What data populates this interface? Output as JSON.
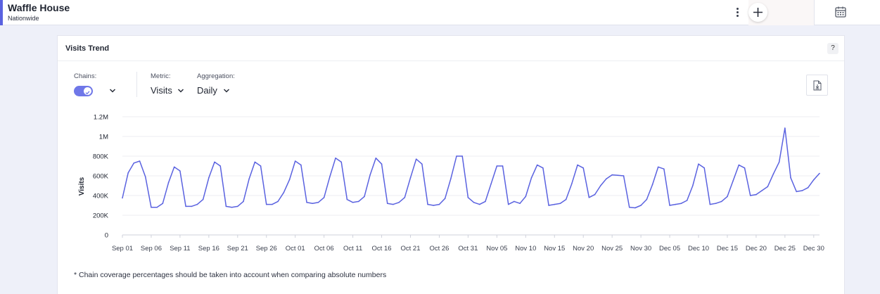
{
  "header": {
    "title": "Waffle House",
    "subtitle": "Nationwide",
    "more_icon": "kebab-vertical-icon",
    "add_icon": "plus-icon",
    "calendar_icon": "calendar-icon"
  },
  "card": {
    "title": "Visits Trend",
    "help_label": "?",
    "controls": {
      "chains_label": "Chains:",
      "metric_label": "Metric:",
      "metric_value": "Visits",
      "aggregation_label": "Aggregation:",
      "aggregation_value": "Daily"
    },
    "footnote": "* Chain coverage percentages should be taken into account when comparing absolute numbers"
  },
  "colors": {
    "accent": "#5a62e0",
    "line": "#5a62e0",
    "toggle": "#6f77e8"
  },
  "chart_data": {
    "type": "line",
    "ylabel": "Visits",
    "ylim": [
      0,
      1200000
    ],
    "y_ticks": [
      0,
      200000,
      400000,
      600000,
      800000,
      1000000,
      1200000
    ],
    "y_tick_labels": [
      "0",
      "200K",
      "400K",
      "600K",
      "800K",
      "1M",
      "1.2M"
    ],
    "x_tick_labels": [
      "Sep 01",
      "Sep 06",
      "Sep 11",
      "Sep 16",
      "Sep 21",
      "Sep 26",
      "Oct 01",
      "Oct 06",
      "Oct 11",
      "Oct 16",
      "Oct 21",
      "Oct 26",
      "Oct 31",
      "Nov 05",
      "Nov 10",
      "Nov 15",
      "Nov 20",
      "Nov 25",
      "Nov 30",
      "Dec 05",
      "Dec 10",
      "Dec 15",
      "Dec 20",
      "Dec 25",
      "Dec 30"
    ],
    "x_start": "2023-09-01",
    "x_end": "2023-12-31",
    "grid": true,
    "series": [
      {
        "values": [
          375000,
          630000,
          730000,
          750000,
          590000,
          280000,
          280000,
          320000,
          530000,
          690000,
          650000,
          290000,
          290000,
          310000,
          360000,
          580000,
          740000,
          700000,
          290000,
          280000,
          290000,
          340000,
          570000,
          740000,
          700000,
          310000,
          310000,
          340000,
          430000,
          560000,
          750000,
          710000,
          330000,
          320000,
          330000,
          380000,
          590000,
          780000,
          740000,
          360000,
          330000,
          340000,
          390000,
          610000,
          780000,
          720000,
          320000,
          310000,
          330000,
          380000,
          580000,
          770000,
          720000,
          310000,
          300000,
          310000,
          370000,
          570000,
          800000,
          800000,
          380000,
          330000,
          310000,
          340000,
          520000,
          700000,
          700000,
          310000,
          340000,
          320000,
          390000,
          580000,
          710000,
          680000,
          300000,
          310000,
          320000,
          360000,
          520000,
          710000,
          680000,
          380000,
          410000,
          500000,
          570000,
          610000,
          605000,
          600000,
          280000,
          275000,
          300000,
          360000,
          510000,
          690000,
          670000,
          300000,
          310000,
          320000,
          350000,
          500000,
          720000,
          680000,
          310000,
          320000,
          340000,
          390000,
          550000,
          710000,
          680000,
          400000,
          410000,
          450000,
          490000,
          620000,
          740000,
          1085000,
          580000,
          440000,
          450000,
          480000,
          560000,
          625000
        ]
      }
    ]
  }
}
